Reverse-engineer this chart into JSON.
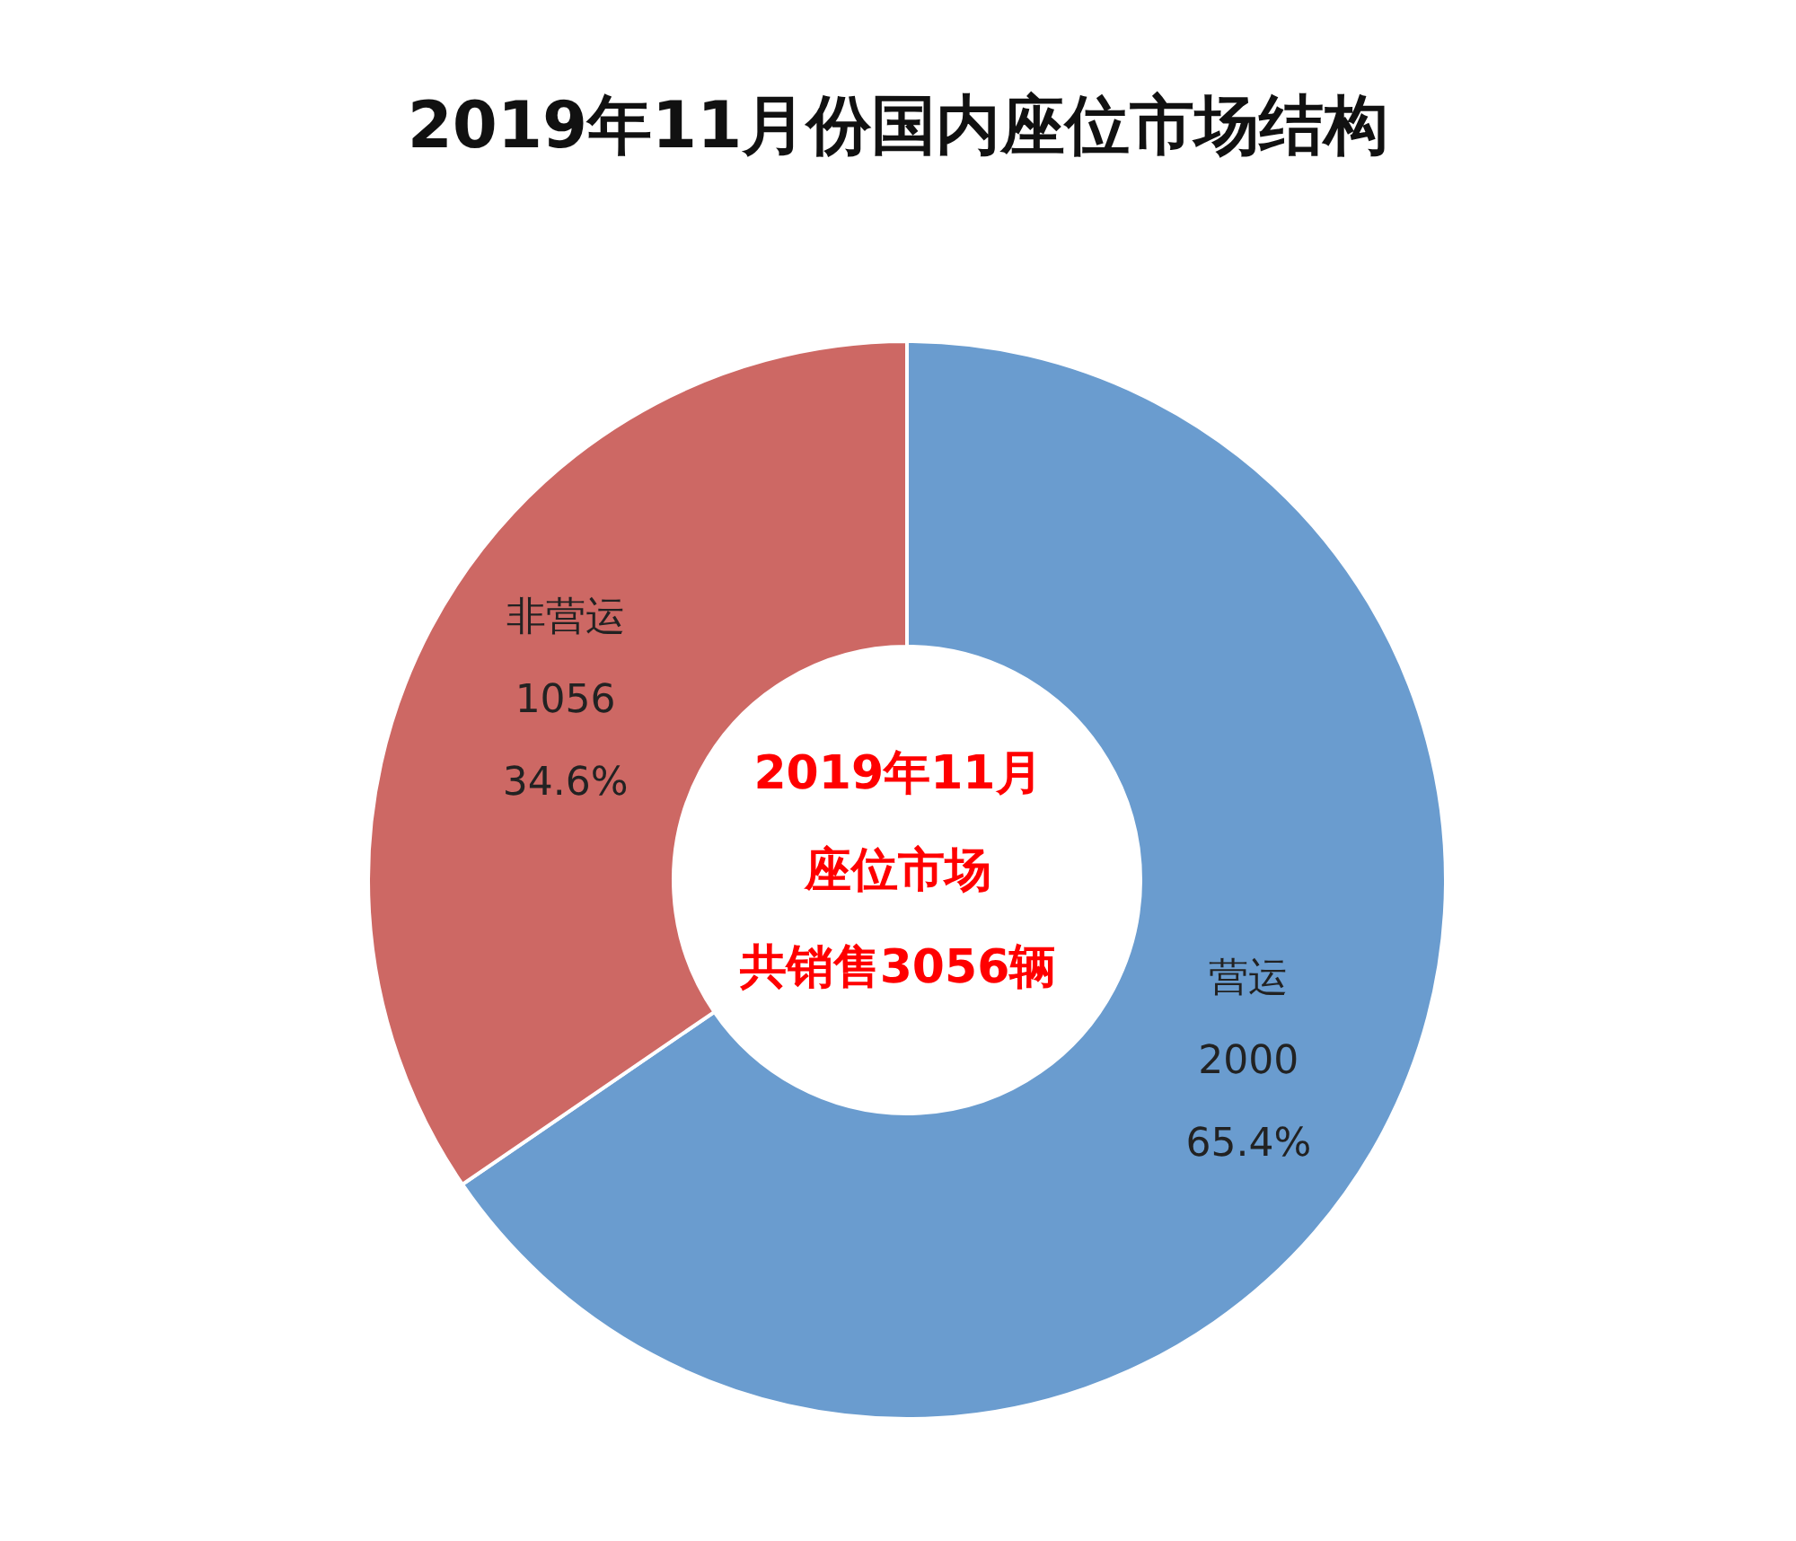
{
  "chart_data": {
    "type": "donut",
    "title": "2019年11月份国内座位市场结构",
    "categories": [
      "营运",
      "非营运"
    ],
    "values": [
      2000,
      1056
    ],
    "colors": [
      "#6a9ccf",
      "#cd6864"
    ],
    "value_labels": [
      "2000\n65.4%",
      "1056\n34.6%"
    ],
    "annotations": [
      "2019年11月",
      "座位市场",
      "共销售3056辆"
    ],
    "legend": false
  }
}
